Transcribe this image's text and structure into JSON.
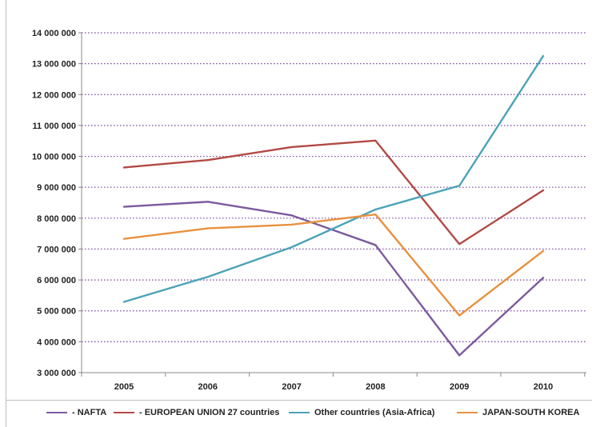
{
  "chart_data": {
    "type": "line",
    "title": "",
    "xlabel": "",
    "ylabel": "",
    "categories": [
      "2005",
      "2006",
      "2007",
      "2008",
      "2009",
      "2010"
    ],
    "ylim": [
      3000000,
      14000000
    ],
    "yticks": [
      3000000,
      4000000,
      5000000,
      6000000,
      7000000,
      8000000,
      9000000,
      10000000,
      11000000,
      12000000,
      13000000,
      14000000
    ],
    "ytick_labels": [
      "3 000 000",
      "4 000 000",
      "5 000 000",
      "6 000 000",
      "7 000 000",
      "8 000 000",
      "9 000 000",
      "10 000 000",
      "11 000 000",
      "12 000 000",
      "13 000 000",
      "14 000 000"
    ],
    "grid": "horizontal-dotted",
    "legend_position": "bottom",
    "series": [
      {
        "name": "- NAFTA",
        "color": "#7b5a9e",
        "values": [
          8370000,
          8530000,
          8090000,
          7130000,
          3560000,
          6070000
        ]
      },
      {
        "name": "- EUROPEAN UNION 27 countries",
        "color": "#b24a45",
        "values": [
          9640000,
          9880000,
          10300000,
          10510000,
          7160000,
          8900000
        ]
      },
      {
        "name": "Other countries (Asia-Africa)",
        "color": "#4aa3b7",
        "values": [
          5290000,
          6100000,
          7060000,
          8280000,
          9050000,
          13250000
        ]
      },
      {
        "name": "JAPAN-SOUTH KOREA",
        "color": "#e8913f",
        "values": [
          7330000,
          7670000,
          7790000,
          8120000,
          4850000,
          6940000
        ]
      }
    ],
    "grid_color": "#7a3fa0",
    "axis_color": "#888888"
  }
}
